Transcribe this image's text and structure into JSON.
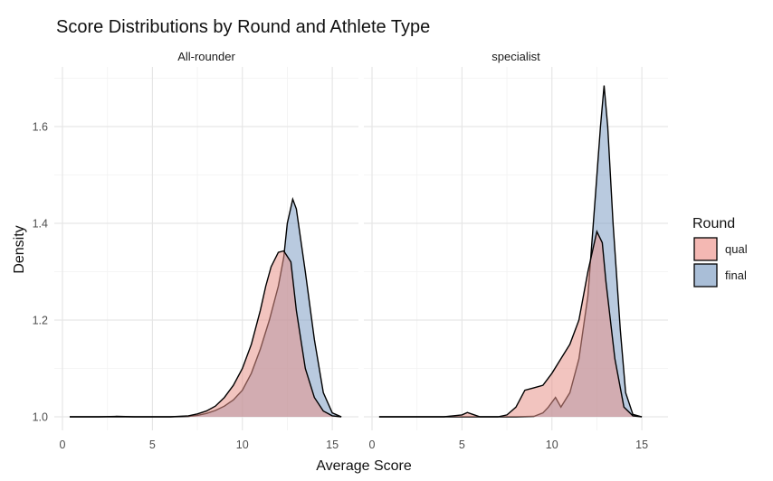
{
  "chart_data": {
    "type": "area",
    "title": "Score Distributions by Round and Athlete Type",
    "xlabel": "Average Score",
    "ylabel": "Density",
    "xlim": [
      0,
      16
    ],
    "ylim": [
      1.0,
      1.7
    ],
    "x_ticks": [
      0,
      5,
      10,
      15
    ],
    "y_ticks": [
      1.0,
      1.2,
      1.4,
      1.6
    ],
    "grid": true,
    "legend": {
      "title": "Round",
      "position": "right",
      "entries": [
        {
          "label": "qual",
          "color": "#f4b8b3"
        },
        {
          "label": "final",
          "color": "#a9bed7"
        }
      ]
    },
    "series_colors": {
      "qual": "#e8938b",
      "final": "#7f9ec4"
    },
    "panels": [
      {
        "facet": "All-rounder",
        "series": [
          {
            "name": "qual",
            "x": [
              0.4,
              2,
              3,
              4,
              5,
              6,
              7,
              7.5,
              8,
              8.5,
              9,
              9.5,
              10,
              10.5,
              11,
              11.3,
              11.6,
              12,
              12.3,
              12.7,
              13,
              13.5,
              14,
              14.5,
              15,
              15.5
            ],
            "values": [
              1.0,
              1.0,
              1.0,
              1.0,
              1.0,
              1.0,
              1.002,
              1.006,
              1.012,
              1.022,
              1.04,
              1.065,
              1.1,
              1.15,
              1.22,
              1.27,
              1.31,
              1.34,
              1.343,
              1.32,
              1.22,
              1.1,
              1.04,
              1.012,
              1.002,
              1.0
            ]
          },
          {
            "name": "final",
            "x": [
              0.4,
              2,
              3,
              4,
              5,
              6,
              7,
              7.5,
              8,
              8.5,
              9,
              9.5,
              10,
              10.5,
              11,
              11.5,
              12,
              12.3,
              12.5,
              12.8,
              13,
              13.5,
              14,
              14.5,
              15,
              15.5
            ],
            "values": [
              1.0,
              1.0,
              1.001,
              1.0,
              1.0,
              1.0,
              1.001,
              1.003,
              1.007,
              1.013,
              1.022,
              1.035,
              1.055,
              1.09,
              1.14,
              1.2,
              1.27,
              1.33,
              1.4,
              1.45,
              1.43,
              1.3,
              1.16,
              1.05,
              1.008,
              1.0
            ]
          }
        ]
      },
      {
        "facet": "specialist",
        "series": [
          {
            "name": "qual",
            "x": [
              0.4,
              4,
              5,
              5.3,
              5.6,
              6,
              7,
              7.5,
              8,
              8.5,
              9,
              9.5,
              10,
              10.5,
              11,
              11.5,
              12,
              12.5,
              12.8,
              13,
              13.5,
              14,
              14.5,
              15
            ],
            "values": [
              1.0,
              1.0,
              1.004,
              1.009,
              1.005,
              1.0,
              1.0,
              1.004,
              1.02,
              1.055,
              1.06,
              1.065,
              1.09,
              1.12,
              1.15,
              1.2,
              1.3,
              1.383,
              1.36,
              1.28,
              1.12,
              1.02,
              1.002,
              1.0
            ]
          },
          {
            "name": "final",
            "x": [
              0.4,
              4,
              5,
              6,
              7,
              8,
              9,
              9.5,
              9.8,
              10.2,
              10.5,
              11,
              11.5,
              12,
              12.4,
              12.7,
              12.9,
              13.1,
              13.4,
              13.8,
              14.1,
              14.5,
              15
            ],
            "values": [
              1.0,
              1.0,
              1.0,
              1.0,
              1.0,
              1.0,
              1.001,
              1.008,
              1.02,
              1.04,
              1.02,
              1.05,
              1.12,
              1.25,
              1.45,
              1.6,
              1.685,
              1.6,
              1.4,
              1.18,
              1.05,
              1.005,
              1.0
            ]
          }
        ]
      }
    ]
  }
}
